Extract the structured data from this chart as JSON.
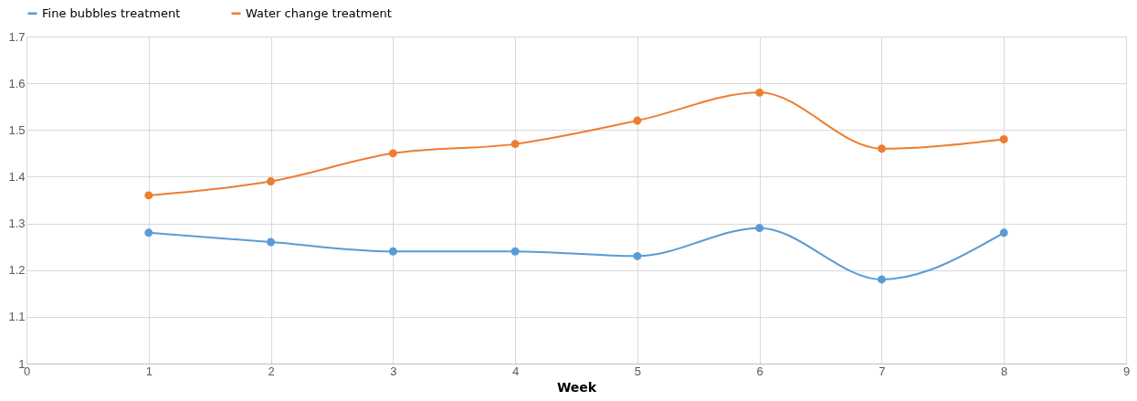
{
  "chart_data": {
    "type": "line",
    "xlabel": "Week",
    "x": [
      1,
      2,
      3,
      4,
      5,
      6,
      7,
      8
    ],
    "series": [
      {
        "name": "Fine bubbles treatment",
        "color": "#5b9bd5",
        "values": [
          1.28,
          1.26,
          1.24,
          1.24,
          1.23,
          1.29,
          1.18,
          1.28
        ]
      },
      {
        "name": "Water change treatment",
        "color": "#ed7d31",
        "values": [
          1.36,
          1.39,
          1.45,
          1.47,
          1.52,
          1.58,
          1.46,
          1.48
        ]
      }
    ],
    "xlim": [
      0,
      9
    ],
    "xticks": [
      0,
      1,
      2,
      3,
      4,
      5,
      6,
      7,
      8,
      9
    ],
    "ylim": [
      1,
      1.7
    ],
    "yticks": [
      1,
      1.1,
      1.2,
      1.3,
      1.4,
      1.5,
      1.6,
      1.7
    ],
    "grid": true,
    "legend": "top",
    "marker": "circle",
    "line_style": "solid"
  }
}
